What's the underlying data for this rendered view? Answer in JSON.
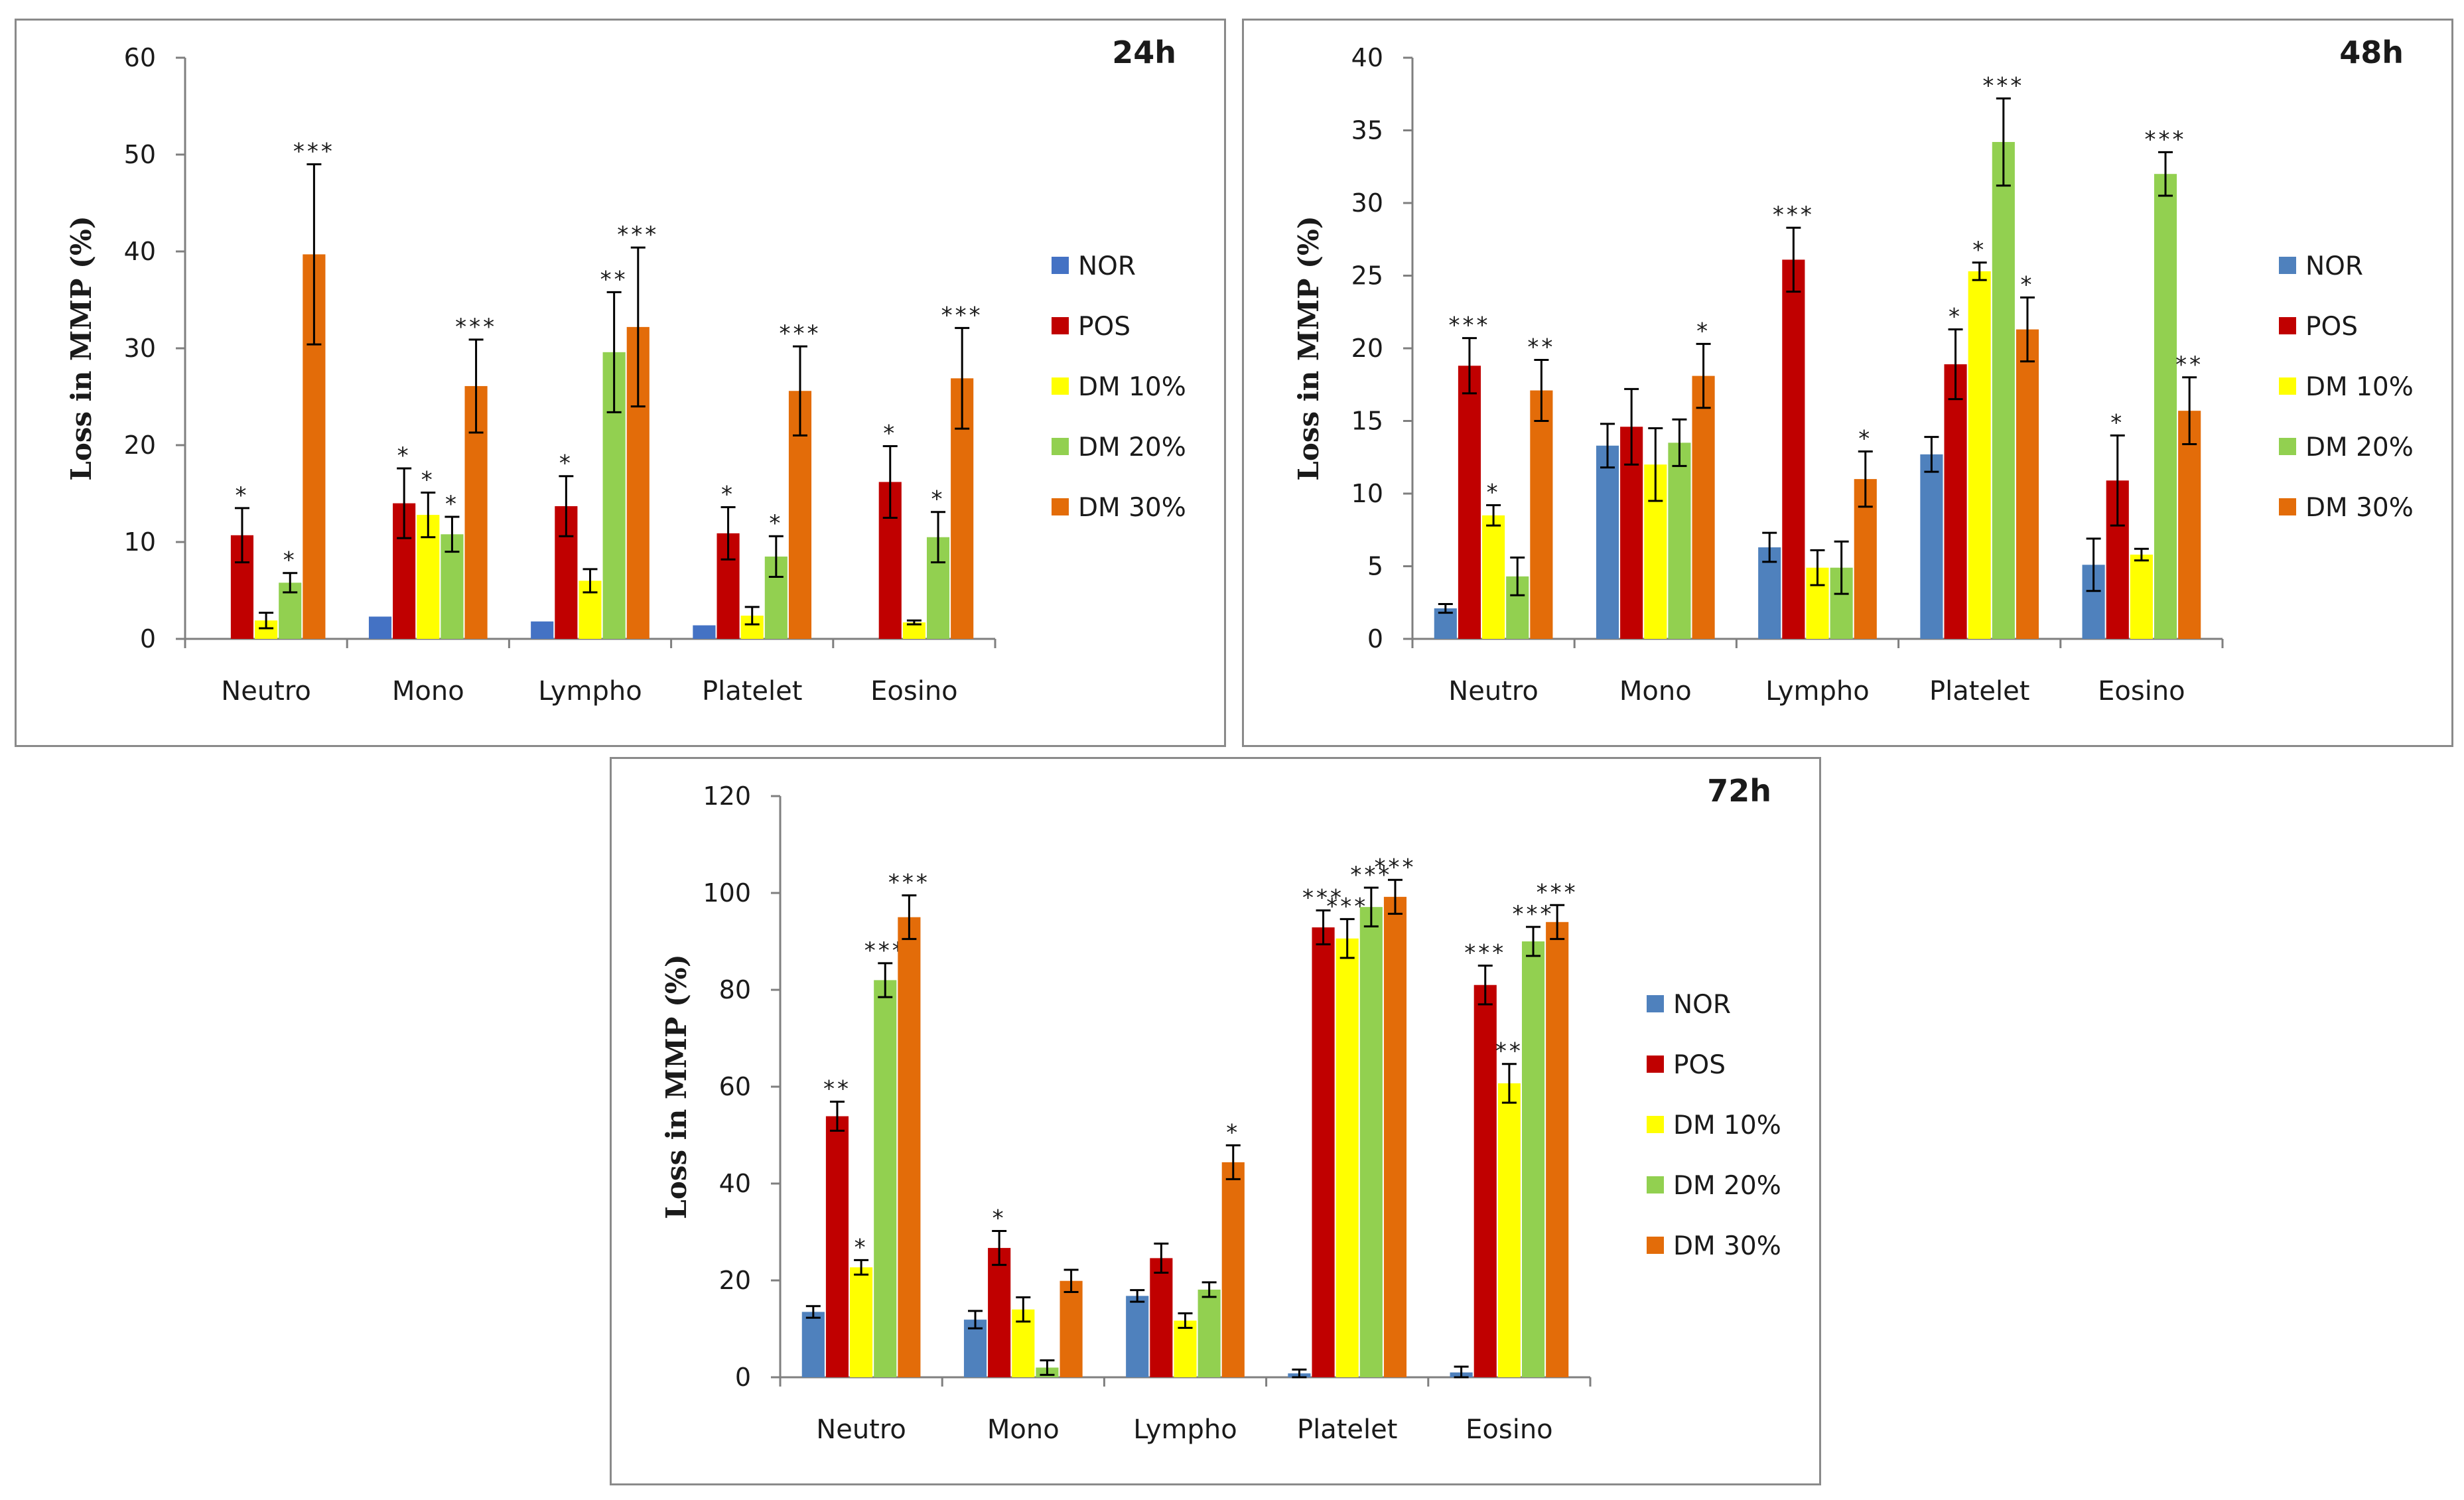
{
  "chart_data": [
    {
      "type": "bar",
      "title": "24h",
      "ylabel": "Loss in MMP (%)",
      "xlabel": "",
      "ylim": [
        0,
        60
      ],
      "yticks": [
        0,
        10,
        20,
        30,
        40,
        50,
        60
      ],
      "categories": [
        "Neutro",
        "Mono",
        "Lympho",
        "Platelet",
        "Eosino"
      ],
      "legend_position": "right",
      "series": [
        {
          "name": "NOR",
          "color": "#4472c4",
          "values": [
            0.0,
            2.3,
            1.8,
            1.4,
            0.0
          ],
          "errors": [
            0,
            0,
            0,
            0,
            0
          ],
          "stars": [
            "",
            "",
            "",
            "",
            ""
          ]
        },
        {
          "name": "POS",
          "color": "#c00000",
          "values": [
            10.7,
            14.0,
            13.7,
            10.9,
            16.2
          ],
          "errors": [
            2.8,
            3.6,
            3.1,
            2.7,
            3.7
          ],
          "stars": [
            "*",
            "*",
            "*",
            "*",
            "*"
          ]
        },
        {
          "name": "DM 10%",
          "color": "#ffff00",
          "values": [
            1.9,
            12.8,
            6.0,
            2.4,
            1.7
          ],
          "errors": [
            0.8,
            2.3,
            1.2,
            0.9,
            0.2
          ],
          "stars": [
            "",
            "*",
            "",
            "",
            ""
          ]
        },
        {
          "name": "DM 20%",
          "color": "#92d050",
          "values": [
            5.8,
            10.8,
            29.6,
            8.5,
            10.5
          ],
          "errors": [
            1.0,
            1.8,
            6.2,
            2.1,
            2.6
          ],
          "stars": [
            "*",
            "*",
            "**",
            "*",
            "*"
          ]
        },
        {
          "name": "DM 30%",
          "color": "#e36c09",
          "values": [
            39.7,
            26.1,
            32.2,
            25.6,
            26.9
          ],
          "errors": [
            9.3,
            4.8,
            8.2,
            4.6,
            5.2
          ],
          "stars": [
            "***",
            "***",
            "***",
            "***",
            "***"
          ]
        }
      ]
    },
    {
      "type": "bar",
      "title": "48h",
      "ylabel": "Loss in MMP (%)",
      "xlabel": "",
      "ylim": [
        0,
        40
      ],
      "yticks": [
        0,
        5,
        10,
        15,
        20,
        25,
        30,
        35,
        40
      ],
      "categories": [
        "Neutro",
        "Mono",
        "Lympho",
        "Platelet",
        "Eosino"
      ],
      "legend_position": "right",
      "series": [
        {
          "name": "NOR",
          "color": "#4f81bd",
          "values": [
            2.1,
            13.3,
            6.3,
            12.7,
            5.1
          ],
          "errors": [
            0.3,
            1.5,
            1.0,
            1.2,
            1.8
          ],
          "stars": [
            "",
            "",
            "",
            "",
            ""
          ]
        },
        {
          "name": "POS",
          "color": "#c00000",
          "values": [
            18.8,
            14.6,
            26.1,
            18.9,
            10.9
          ],
          "errors": [
            1.9,
            2.6,
            2.2,
            2.4,
            3.1
          ],
          "stars": [
            "***",
            "",
            "***",
            "*",
            "*"
          ]
        },
        {
          "name": "DM 10%",
          "color": "#ffff00",
          "values": [
            8.5,
            12.0,
            4.9,
            25.3,
            5.8
          ],
          "errors": [
            0.7,
            2.5,
            1.2,
            0.6,
            0.4
          ],
          "stars": [
            "*",
            "",
            "",
            "*",
            ""
          ]
        },
        {
          "name": "DM 20%",
          "color": "#92d050",
          "values": [
            4.3,
            13.5,
            4.9,
            34.2,
            32.0
          ],
          "errors": [
            1.3,
            1.6,
            1.8,
            3.0,
            1.5
          ],
          "stars": [
            "",
            "",
            "",
            "***",
            "***"
          ]
        },
        {
          "name": "DM 30%",
          "color": "#e36c09",
          "values": [
            17.1,
            18.1,
            11.0,
            21.3,
            15.7
          ],
          "errors": [
            2.1,
            2.2,
            1.9,
            2.2,
            2.3
          ],
          "stars": [
            "**",
            "*",
            "*",
            "*",
            "**"
          ]
        }
      ]
    },
    {
      "type": "bar",
      "title": "72h",
      "ylabel": "Loss in MMP (%)",
      "xlabel": "",
      "ylim": [
        0,
        120
      ],
      "yticks": [
        0,
        20,
        40,
        60,
        80,
        100,
        120
      ],
      "categories": [
        "Neutro",
        "Mono",
        "Lympho",
        "Platelet",
        "Eosino"
      ],
      "legend_position": "right",
      "series": [
        {
          "name": "NOR",
          "color": "#4f81bd",
          "values": [
            13.5,
            11.9,
            16.8,
            0.8,
            1.0
          ],
          "errors": [
            1.2,
            1.8,
            1.2,
            0.8,
            1.2
          ],
          "stars": [
            "",
            "",
            "",
            "",
            ""
          ]
        },
        {
          "name": "POS",
          "color": "#c00000",
          "values": [
            53.9,
            26.7,
            24.6,
            92.9,
            81.0
          ],
          "errors": [
            3.0,
            3.5,
            3.0,
            3.5,
            4.0
          ],
          "stars": [
            "**",
            "*",
            "",
            "***",
            "***"
          ]
        },
        {
          "name": "DM 10%",
          "color": "#ffff00",
          "values": [
            22.7,
            14.0,
            11.7,
            90.6,
            60.7
          ],
          "errors": [
            1.5,
            2.5,
            1.5,
            4.0,
            4.0
          ],
          "stars": [
            "*",
            "",
            "",
            "***",
            "**"
          ]
        },
        {
          "name": "DM 20%",
          "color": "#92d050",
          "values": [
            82.0,
            2.0,
            18.1,
            97.1,
            90.0
          ],
          "errors": [
            3.5,
            1.5,
            1.5,
            4.0,
            3.0
          ],
          "stars": [
            "***",
            "",
            "",
            "***",
            "***"
          ]
        },
        {
          "name": "DM 30%",
          "color": "#e36c09",
          "values": [
            95.0,
            19.9,
            44.4,
            99.2,
            94.0
          ],
          "errors": [
            4.5,
            2.3,
            3.5,
            3.5,
            3.5
          ],
          "stars": [
            "***",
            "",
            "*",
            "***",
            "***"
          ]
        }
      ]
    }
  ]
}
